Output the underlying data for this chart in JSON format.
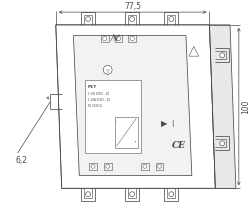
{
  "background_color": "#ffffff",
  "dim_77_5": "77,5",
  "dim_100": "100",
  "dim_6_2": "6,2",
  "line_color": "#4a4a4a",
  "dim_color": "#4a4a4a",
  "figsize": [
    2.5,
    2.17
  ],
  "dpi": 100
}
